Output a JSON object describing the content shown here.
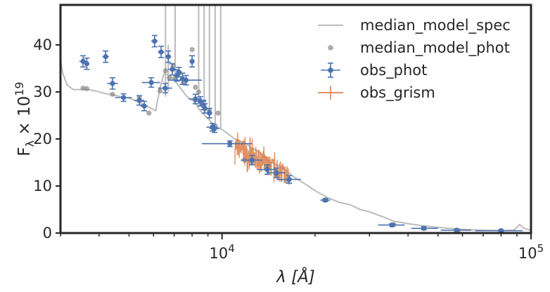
{
  "chart_data": {
    "type": "scatter",
    "x_scale": "log",
    "xlim": [
      3000,
      100000
    ],
    "ylim": [
      0,
      48.5
    ],
    "xlabel_html": "λ [Å]",
    "ylabel": "F_λ × 10^19",
    "x_ticks": [
      {
        "value": 10000,
        "base": "10",
        "exp": "4"
      },
      {
        "value": 100000,
        "base": "10",
        "exp": "5"
      }
    ],
    "y_ticks": [
      {
        "value": 0,
        "label": "0"
      },
      {
        "value": 10,
        "label": "10"
      },
      {
        "value": 20,
        "label": "20"
      },
      {
        "value": 30,
        "label": "30"
      },
      {
        "value": 40,
        "label": "40"
      }
    ],
    "legend": {
      "position": "top-right",
      "entries": [
        {
          "key": "model_spec",
          "label": "median_model_spec"
        },
        {
          "key": "model_phot",
          "label": "median_model_phot"
        },
        {
          "key": "obs_phot",
          "label": "obs_phot"
        },
        {
          "key": "obs_grism",
          "label": "obs_grism"
        }
      ]
    },
    "colors": {
      "model_spec": "#bbbbbb",
      "model_phot": "#7f7f7f",
      "obs_phot": "#4c72b0",
      "obs_grism": "#dd8452",
      "axes": "#262626"
    },
    "series": [
      {
        "name": "median_model_spec",
        "kind": "line",
        "points": [
          [
            3000,
            37
          ],
          [
            3050,
            34
          ],
          [
            3150,
            31.5
          ],
          [
            3300,
            30.5
          ],
          [
            3500,
            30.5
          ],
          [
            3700,
            30.5
          ],
          [
            3900,
            30.2
          ],
          [
            4100,
            29.8
          ],
          [
            4300,
            29.5
          ],
          [
            4500,
            29.3
          ],
          [
            4700,
            29
          ],
          [
            4900,
            28.8
          ],
          [
            5100,
            28.5
          ],
          [
            5300,
            28
          ],
          [
            5500,
            27.5
          ],
          [
            5700,
            27
          ],
          [
            5900,
            26.5
          ],
          [
            6100,
            26
          ],
          [
            6300,
            31
          ],
          [
            6500,
            34
          ],
          [
            6700,
            33.5
          ],
          [
            6900,
            33
          ],
          [
            7100,
            32
          ],
          [
            7300,
            31
          ],
          [
            7500,
            30
          ],
          [
            7700,
            29
          ],
          [
            7900,
            28.5
          ],
          [
            8100,
            28
          ],
          [
            8300,
            27
          ],
          [
            8500,
            26
          ],
          [
            8800,
            25
          ],
          [
            9100,
            24
          ],
          [
            9400,
            23
          ],
          [
            9700,
            22.5
          ],
          [
            10000,
            22
          ],
          [
            10500,
            21
          ],
          [
            11000,
            20
          ],
          [
            11500,
            19.5
          ],
          [
            12000,
            19
          ],
          [
            12500,
            18
          ],
          [
            13000,
            17.5
          ],
          [
            13500,
            16.5
          ],
          [
            14000,
            15.5
          ],
          [
            14500,
            15
          ],
          [
            15000,
            14.5
          ],
          [
            15500,
            14
          ],
          [
            16000,
            13.5
          ],
          [
            17000,
            12
          ],
          [
            18000,
            11
          ],
          [
            19000,
            10
          ],
          [
            20000,
            9
          ],
          [
            22000,
            7.5
          ],
          [
            24000,
            6.5
          ],
          [
            26000,
            6
          ],
          [
            27000,
            5.5
          ],
          [
            28000,
            5
          ],
          [
            30000,
            4.5
          ],
          [
            33000,
            3.5
          ],
          [
            36000,
            2.5
          ],
          [
            40000,
            2
          ],
          [
            45000,
            1.5
          ],
          [
            50000,
            1.2
          ],
          [
            55000,
            1.0
          ],
          [
            60000,
            0.8
          ],
          [
            70000,
            0.6
          ],
          [
            80000,
            0.5
          ],
          [
            88000,
            0.6
          ],
          [
            92000,
            1.8
          ],
          [
            95000,
            1.0
          ],
          [
            100000,
            0.6
          ]
        ],
        "emission_lines": [
          {
            "x": 6563,
            "y_top": 48.5,
            "y_base": 29
          },
          {
            "x": 6700,
            "y_top": 40,
            "y_base": 30
          },
          {
            "x": 7050,
            "y_top": 48.5,
            "y_base": 32
          },
          {
            "x": 8400,
            "y_top": 48.5,
            "y_base": 27
          },
          {
            "x": 8750,
            "y_top": 48.5,
            "y_base": 25
          },
          {
            "x": 9100,
            "y_top": 48.5,
            "y_base": 24
          },
          {
            "x": 9500,
            "y_top": 48.5,
            "y_base": 23
          },
          {
            "x": 9900,
            "y_top": 48.5,
            "y_base": 22
          }
        ]
      },
      {
        "name": "median_model_phot",
        "kind": "points",
        "points": [
          [
            3550,
            30.8
          ],
          [
            3650,
            30.7
          ],
          [
            4420,
            29.5
          ],
          [
            4800,
            28.8
          ],
          [
            5400,
            28.7
          ],
          [
            5800,
            25.5
          ],
          [
            6300,
            30.2
          ],
          [
            6560,
            34.5
          ],
          [
            6750,
            33.0
          ],
          [
            6950,
            35.5
          ],
          [
            7050,
            33.0
          ],
          [
            7300,
            34.0
          ],
          [
            7500,
            32.0
          ],
          [
            8000,
            39.0
          ],
          [
            8200,
            31.0
          ],
          [
            8400,
            30.0
          ],
          [
            8700,
            27.0
          ],
          [
            9100,
            26.0
          ],
          [
            9700,
            25.5
          ],
          [
            11800,
            15.5
          ],
          [
            12500,
            15.0
          ],
          [
            14000,
            14.0
          ],
          [
            15000,
            12.5
          ],
          [
            16200,
            11.0
          ],
          [
            21500,
            7.0
          ],
          [
            36000,
            1.8
          ],
          [
            45000,
            1.0
          ],
          [
            58000,
            0.5
          ],
          [
            80000,
            0.4
          ]
        ]
      },
      {
        "name": "obs_phot",
        "kind": "errorbar",
        "points": [
          {
            "x": 3550,
            "y": 36.5,
            "xl": 3450,
            "xh": 3650,
            "err": 1.2
          },
          {
            "x": 3650,
            "y": 36.0,
            "xl": 3580,
            "xh": 3720,
            "err": 1.2
          },
          {
            "x": 4200,
            "y": 37.5,
            "xl": 4100,
            "xh": 4300,
            "err": 1.2
          },
          {
            "x": 4420,
            "y": 31.8,
            "xl": 4250,
            "xh": 4600,
            "err": 1.2
          },
          {
            "x": 4800,
            "y": 28.8,
            "xl": 4500,
            "xh": 5100,
            "err": 0.8
          },
          {
            "x": 5400,
            "y": 28.2,
            "xl": 5200,
            "xh": 5600,
            "err": 1.0
          },
          {
            "x": 5600,
            "y": 27.0,
            "xl": 5450,
            "xh": 5750,
            "err": 1.0
          },
          {
            "x": 5900,
            "y": 32.0,
            "xl": 5500,
            "xh": 6300,
            "err": 1.0
          },
          {
            "x": 6050,
            "y": 40.8,
            "xl": 5900,
            "xh": 6200,
            "err": 1.2
          },
          {
            "x": 6350,
            "y": 38.5,
            "xl": 6200,
            "xh": 6500,
            "err": 1.2
          },
          {
            "x": 6550,
            "y": 30.8,
            "xl": 6200,
            "xh": 6900,
            "err": 1.0
          },
          {
            "x": 6700,
            "y": 37.5,
            "xl": 6550,
            "xh": 6850,
            "err": 1.2
          },
          {
            "x": 6900,
            "y": 34.8,
            "xl": 6700,
            "xh": 7100,
            "err": 1.2
          },
          {
            "x": 7150,
            "y": 33.5,
            "xl": 7000,
            "xh": 7300,
            "err": 1.2
          },
          {
            "x": 7250,
            "y": 34.2,
            "xl": 7100,
            "xh": 7400,
            "err": 1.0
          },
          {
            "x": 7450,
            "y": 32.8,
            "xl": 7300,
            "xh": 7600,
            "err": 1.2
          },
          {
            "x": 7650,
            "y": 32.5,
            "xl": 6700,
            "xh": 8600,
            "err": 1.0
          },
          {
            "x": 8000,
            "y": 36.5,
            "xl": 7900,
            "xh": 8100,
            "err": 1.2
          },
          {
            "x": 8200,
            "y": 28.5,
            "xl": 7800,
            "xh": 8600,
            "err": 1.0
          },
          {
            "x": 8500,
            "y": 28.0,
            "xl": 8100,
            "xh": 8900,
            "err": 1.0
          },
          {
            "x": 8700,
            "y": 27.2,
            "xl": 8500,
            "xh": 8900,
            "err": 1.0
          },
          {
            "x": 8800,
            "y": 26.5,
            "xl": 8650,
            "xh": 8950,
            "err": 1.0
          },
          {
            "x": 9100,
            "y": 25.5,
            "xl": 8900,
            "xh": 9300,
            "err": 1.0
          },
          {
            "x": 9300,
            "y": 22.5,
            "xl": 8900,
            "xh": 9700,
            "err": 0.8
          },
          {
            "x": 9450,
            "y": 22.2,
            "xl": 9100,
            "xh": 9800,
            "err": 0.8
          },
          {
            "x": 10600,
            "y": 19.0,
            "xl": 8600,
            "xh": 12500,
            "err": 0.6
          },
          {
            "x": 12500,
            "y": 15.5,
            "xl": 11500,
            "xh": 13500,
            "err": 1.0
          },
          {
            "x": 14000,
            "y": 13.5,
            "xl": 13000,
            "xh": 15000,
            "err": 1.0
          },
          {
            "x": 15000,
            "y": 12.8,
            "xl": 14000,
            "xh": 16000,
            "err": 1.0
          },
          {
            "x": 16500,
            "y": 11.4,
            "xl": 15000,
            "xh": 18000,
            "err": 0.8
          },
          {
            "x": 21600,
            "y": 7.0,
            "xl": 20800,
            "xh": 22400,
            "err": 0.3
          },
          {
            "x": 35500,
            "y": 1.7,
            "xl": 32000,
            "xh": 39000,
            "err": 0.3
          },
          {
            "x": 45000,
            "y": 1.0,
            "xl": 41000,
            "xh": 50000,
            "err": 0.3
          },
          {
            "x": 57500,
            "y": 0.6,
            "xl": 51000,
            "xh": 64000,
            "err": 0.2
          },
          {
            "x": 80000,
            "y": 0.5,
            "xl": 66000,
            "xh": 94000,
            "err": 0.2
          }
        ]
      },
      {
        "name": "obs_grism",
        "kind": "noisy_line",
        "x_range": [
          11000,
          16500
        ],
        "trend": [
          [
            11000,
            18.5
          ],
          [
            12000,
            17.0
          ],
          [
            13000,
            15.5
          ],
          [
            14000,
            14.5
          ],
          [
            15000,
            13.5
          ],
          [
            16000,
            12.5
          ],
          [
            16500,
            12.0
          ]
        ],
        "noise_amplitude": 2.2
      }
    ]
  }
}
